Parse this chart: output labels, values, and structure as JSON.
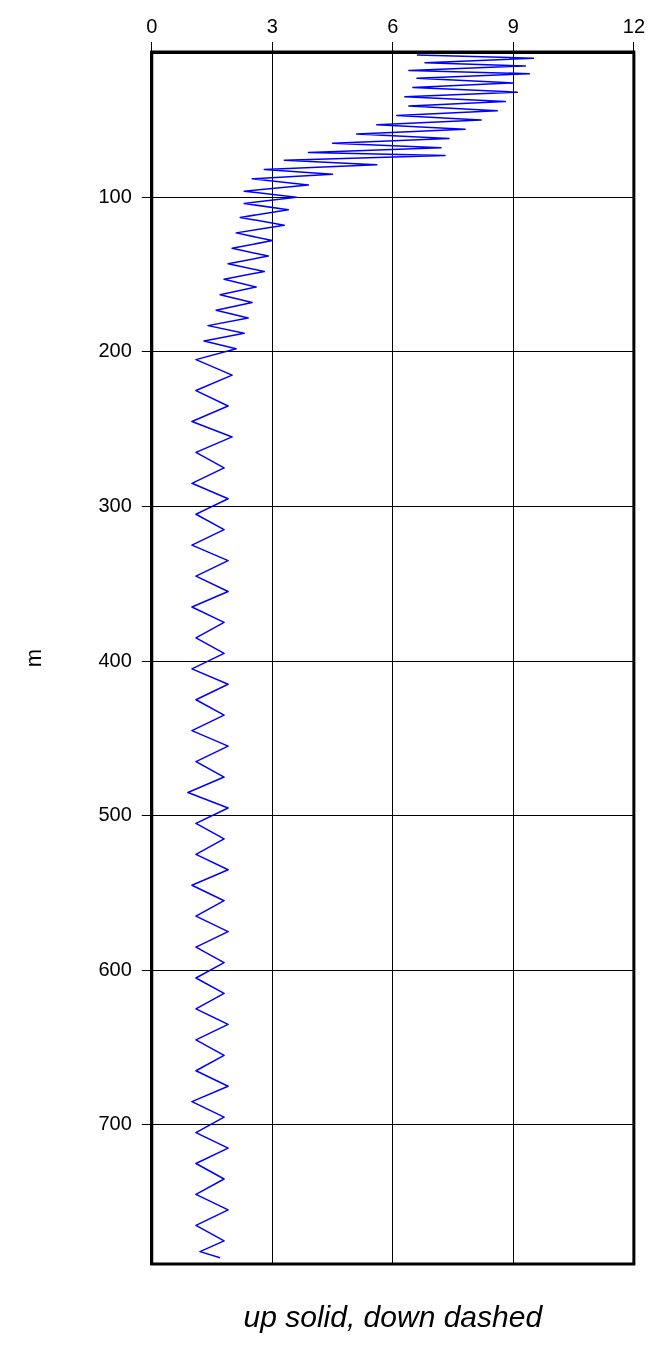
{
  "chart_data": {
    "type": "line",
    "xlabel": "up solid, down dashed",
    "ylabel": "m",
    "xlim": [
      0,
      12
    ],
    "xticks": [
      0,
      3,
      6,
      9,
      12
    ],
    "ylim": [
      790,
      6
    ],
    "yticks": [
      100,
      200,
      300,
      400,
      500,
      600,
      700
    ],
    "grid": true,
    "legend": false,
    "marker": "none",
    "line_style": "solid",
    "series": [
      {
        "color": "#0000ff",
        "x": [
          6.6,
          9.5,
          6.8,
          9.3,
          6.4,
          9.4,
          6.6,
          9.0,
          6.5,
          9.1,
          6.3,
          8.8,
          6.4,
          8.6,
          6.1,
          8.2,
          5.6,
          7.8,
          5.1,
          7.4,
          4.5,
          7.2,
          3.9,
          7.3,
          3.3,
          5.6,
          2.8,
          4.5,
          2.5,
          3.9,
          2.3,
          3.6,
          2.3,
          3.4,
          2.2,
          3.3,
          2.1,
          3.0,
          2.0,
          2.9,
          1.9,
          2.8,
          1.8,
          2.6,
          1.7,
          2.5,
          1.6,
          2.4,
          1.4,
          2.3,
          1.3,
          2.1,
          1.1,
          2.0,
          1.1,
          1.9,
          1.0,
          2.0,
          1.1,
          1.8,
          1.0,
          1.9,
          1.1,
          1.8,
          1.0,
          1.9,
          1.1,
          1.9,
          1.0,
          1.8,
          1.1,
          1.8,
          1.0,
          1.9,
          1.1,
          1.8,
          1.0,
          1.9,
          1.1,
          1.8,
          0.9,
          1.9,
          1.1,
          1.8,
          1.1,
          1.9,
          1.0,
          1.8,
          1.1,
          1.9,
          1.1,
          1.8,
          1.1,
          1.8,
          1.1,
          1.9,
          1.1,
          1.8,
          1.1,
          1.9,
          1.0,
          1.8,
          1.1,
          1.9,
          1.1,
          1.8,
          1.1,
          1.9,
          1.1,
          1.8,
          1.2,
          1.7
        ],
        "values": [
          8,
          10,
          13,
          15,
          18,
          20,
          23,
          26,
          29,
          32,
          35,
          38,
          41,
          44,
          47,
          50,
          53,
          56,
          59,
          62,
          65,
          68,
          71,
          73,
          76,
          79,
          82,
          85,
          88,
          92,
          96,
          100,
          104,
          108,
          113,
          118,
          123,
          128,
          133,
          138,
          143,
          148,
          153,
          158,
          163,
          168,
          173,
          178,
          183,
          188,
          193,
          198,
          205,
          215,
          225,
          235,
          245,
          255,
          265,
          275,
          285,
          295,
          305,
          315,
          325,
          335,
          345,
          355,
          365,
          375,
          385,
          395,
          405,
          415,
          425,
          435,
          445,
          455,
          465,
          475,
          485,
          495,
          505,
          515,
          525,
          535,
          545,
          555,
          565,
          575,
          585,
          595,
          605,
          615,
          625,
          635,
          645,
          655,
          665,
          675,
          685,
          695,
          705,
          715,
          725,
          735,
          745,
          755,
          765,
          775,
          782,
          786
        ]
      }
    ]
  }
}
